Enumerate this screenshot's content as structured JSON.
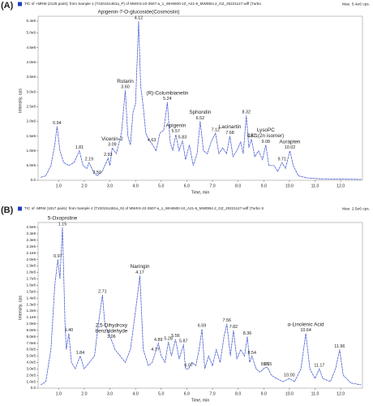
{
  "chart_data": [
    {
      "type": "line",
      "panel_label": "(A)",
      "header": "TIC of +MRM (2125 pairs): from Sample 1 (T220151481a_P) of MWKS-22-3507-a_1_WH6500-10_A21-6_MWDB4.2_GZ_20221127.wiff (Turbo",
      "max_label": "Max. 5.4e6 cps.",
      "xlabel": "Time, min",
      "ylabel": "Intensity, cps",
      "color": "#4a5fd0",
      "xlim": [
        0.2,
        12.85
      ],
      "ylim": [
        0,
        5400000
      ],
      "xticks": [
        {
          "value": 1,
          "label": "1.0"
        },
        {
          "value": 2,
          "label": "2.0"
        },
        {
          "value": 3,
          "label": "3.0"
        },
        {
          "value": 4,
          "label": "4.0"
        },
        {
          "value": 5,
          "label": "5.0"
        },
        {
          "value": 6,
          "label": "6.0"
        },
        {
          "value": 7,
          "label": "7.0"
        },
        {
          "value": 8,
          "label": "8.0"
        },
        {
          "value": 9,
          "label": "9.0"
        },
        {
          "value": 10,
          "label": "10.0"
        },
        {
          "value": 11,
          "label": "11.0"
        },
        {
          "value": 12,
          "label": "12.0"
        }
      ],
      "yticks": [
        {
          "value": 0,
          "label": "0.0"
        },
        {
          "value": 500000,
          "label": "5.0e5"
        },
        {
          "value": 1000000,
          "label": "1.0e6"
        },
        {
          "value": 1500000,
          "label": "1.5e6"
        },
        {
          "value": 2000000,
          "label": "2.0e6"
        },
        {
          "value": 2500000,
          "label": "2.5e6"
        },
        {
          "value": 3000000,
          "label": "3.0e6"
        },
        {
          "value": 3500000,
          "label": "3.5e6"
        },
        {
          "value": 4000000,
          "label": "4.0e6"
        },
        {
          "value": 4500000,
          "label": "4.5e6"
        },
        {
          "value": 5000000,
          "label": "5.0e6"
        },
        {
          "value": 5400000,
          "label": "5.4e6"
        }
      ],
      "x": [
        0.3,
        0.5,
        0.7,
        0.85,
        0.94,
        1.05,
        1.2,
        1.4,
        1.6,
        1.81,
        1.95,
        2.1,
        2.19,
        2.35,
        2.5,
        2.7,
        2.93,
        3.0,
        3.09,
        3.25,
        3.45,
        3.6,
        3.7,
        3.8,
        3.9,
        4.0,
        4.12,
        4.2,
        4.3,
        4.4,
        4.5,
        4.63,
        4.8,
        4.95,
        5.1,
        5.24,
        5.35,
        5.45,
        5.57,
        5.7,
        5.83,
        5.95,
        6.1,
        6.25,
        6.4,
        6.52,
        6.65,
        6.8,
        6.95,
        7.12,
        7.25,
        7.4,
        7.55,
        7.68,
        7.8,
        7.95,
        8.1,
        8.2,
        8.32,
        8.42,
        8.52,
        8.65,
        8.8,
        8.95,
        9.08,
        9.2,
        9.4,
        9.55,
        9.71,
        9.85,
        10.02,
        10.15,
        10.35,
        10.7,
        11.2,
        12.0,
        12.8
      ],
      "values": [
        100000.0,
        150000.0,
        500000.0,
        1200000.0,
        1830000.0,
        1000000.0,
        600000.0,
        500000.0,
        600000.0,
        1000000.0,
        500000.0,
        400000.0,
        600000.0,
        300000.0,
        150000.0,
        300000.0,
        750000.0,
        500000.0,
        1100000.0,
        900000.0,
        1600000.0,
        3050000.0,
        1500000.0,
        1200000.0,
        2300000.0,
        2600000.0,
        5400000.0,
        3200000.0,
        2500000.0,
        1600000.0,
        1400000.0,
        1250000.0,
        1000000.0,
        1600000.0,
        1700000.0,
        2650000.0,
        1300000.0,
        1000000.0,
        1550000.0,
        1000000.0,
        1350000.0,
        700000.0,
        1200000.0,
        500000.0,
        900000.0,
        2000000.0,
        1000000.0,
        900000.0,
        1300000.0,
        1600000.0,
        900000.0,
        1100000.0,
        900000.0,
        1500000.0,
        800000.0,
        1000000.0,
        1300000.0,
        900000.0,
        2200000.0,
        1100000.0,
        1400000.0,
        800000.0,
        1000000.0,
        700000.0,
        1200000.0,
        500000.0,
        500000.0,
        300000.0,
        600000.0,
        400000.0,
        1000000.0,
        500000.0,
        150000.0,
        80000.0,
        50000.0,
        40000.0,
        30000.0
      ],
      "peaks": [
        {
          "rt": 0.94,
          "intensity": 1830000.0
        },
        {
          "rt": 1.81,
          "intensity": 1000000.0
        },
        {
          "rt": 2.19,
          "intensity": 600000.0
        },
        {
          "rt": {
            "value": 2.5,
            "label": "2.50"
          },
          "intensity": 150000.0
        },
        {
          "rt": 2.93,
          "intensity": 750000.0
        },
        {
          "rt": 3.09,
          "intensity": 1100000.0,
          "name": "Vicenin-2"
        },
        {
          "rt": {
            "value": 3.6,
            "label": "3.60"
          },
          "intensity": 3050000.0,
          "name": "Rutarin"
        },
        {
          "rt": 4.12,
          "intensity": 5400000.0,
          "name": "Apigenin-7-O-glucoside(Cosmosiin)"
        },
        {
          "rt": 4.63,
          "intensity": 1250000.0
        },
        {
          "rt": 5.24,
          "intensity": 2650000.0,
          "name": "(R)-Columbianetin"
        },
        {
          "rt": 5.57,
          "intensity": 1550000.0,
          "name": "Apigenin"
        },
        {
          "rt": 5.83,
          "intensity": 1350000.0
        },
        {
          "rt": 6.52,
          "intensity": 2000000.0,
          "name": "Sphondin"
        },
        {
          "rt": 7.12,
          "intensity": 1600000.0
        },
        {
          "rt": 7.68,
          "intensity": 1500000.0,
          "name": "Lacinartin"
        },
        {
          "rt": 8.32,
          "intensity": 2200000.0
        },
        {
          "rt": 8.52,
          "intensity": 1400000.0
        },
        {
          "rt": 9.08,
          "intensity": 1200000.0,
          "name": [
            "LysoPC",
            "18:1(2n isomer)"
          ]
        },
        {
          "rt": 9.71,
          "intensity": 600000.0
        },
        {
          "rt": 10.02,
          "intensity": 1000000.0,
          "name": "Aurapten"
        }
      ]
    },
    {
      "type": "line",
      "panel_label": "(B)",
      "header": "TIC of -MRM (1817 pairs): from Sample 2 (T220151481a_N) of MWKS-22-3507-a_1_WH6500-10_A21-6_MWDB4.2_GZ_20221127.wiff (Turbo S",
      "max_label": "Max. 2.5e6 cps.",
      "xlabel": "Time, min",
      "ylabel": "Intensity, cps",
      "color": "#4a5fd0",
      "xlim": [
        0.2,
        12.85
      ],
      "ylim": [
        0,
        2500000
      ],
      "xticks": [
        {
          "value": 1,
          "label": "1.0"
        },
        {
          "value": 2,
          "label": "2.0"
        },
        {
          "value": 3,
          "label": "3.0"
        },
        {
          "value": 4,
          "label": "4.0"
        },
        {
          "value": 5,
          "label": "5.0"
        },
        {
          "value": 6,
          "label": "6.0"
        },
        {
          "value": 7,
          "label": "7.0"
        },
        {
          "value": 8,
          "label": "8.0"
        },
        {
          "value": 9,
          "label": "9.0"
        },
        {
          "value": 10,
          "label": "10.0"
        },
        {
          "value": 11,
          "label": "11.0"
        },
        {
          "value": 12,
          "label": "12.0"
        }
      ],
      "yticks": [
        {
          "value": 0,
          "label": "0.0"
        },
        {
          "value": 100000,
          "label": "1.0e5"
        },
        {
          "value": 200000,
          "label": "2.0e5"
        },
        {
          "value": 300000,
          "label": "3.0e5"
        },
        {
          "value": 400000,
          "label": "4.0e5"
        },
        {
          "value": 500000,
          "label": "5.0e5"
        },
        {
          "value": 600000,
          "label": "6.0e5"
        },
        {
          "value": 700000,
          "label": "7.0e5"
        },
        {
          "value": 800000,
          "label": "8.0e5"
        },
        {
          "value": 900000,
          "label": "9.0e5"
        },
        {
          "value": 1000000,
          "label": "1.0e6"
        },
        {
          "value": 1100000,
          "label": "1.1e6"
        },
        {
          "value": 1200000,
          "label": "1.2e6"
        },
        {
          "value": 1300000,
          "label": "1.3e6"
        },
        {
          "value": 1400000,
          "label": "1.4e6"
        },
        {
          "value": 1500000,
          "label": "1.5e6"
        },
        {
          "value": 1600000,
          "label": "1.6e6"
        },
        {
          "value": 1700000,
          "label": "1.7e6"
        },
        {
          "value": 1800000,
          "label": "1.8e6"
        },
        {
          "value": 1900000,
          "label": "1.9e6"
        },
        {
          "value": 2000000,
          "label": "2.0e6"
        },
        {
          "value": 2100000,
          "label": "2.1e6"
        },
        {
          "value": 2200000,
          "label": "2.2e6"
        },
        {
          "value": 2300000,
          "label": "2.3e6"
        },
        {
          "value": 2400000,
          "label": "2.4e6"
        },
        {
          "value": 2500000,
          "label": "2.5e6"
        }
      ],
      "x": [
        0.3,
        0.5,
        0.7,
        0.85,
        0.97,
        1.05,
        1.15,
        1.25,
        1.3,
        1.4,
        1.5,
        1.65,
        1.84,
        2.0,
        2.2,
        2.4,
        2.55,
        2.71,
        2.8,
        2.9,
        3.06,
        3.2,
        3.4,
        3.6,
        3.8,
        4.0,
        4.17,
        4.3,
        4.5,
        4.65,
        4.77,
        4.89,
        5.0,
        5.15,
        5.28,
        5.4,
        5.56,
        5.7,
        5.87,
        5.95,
        6.07,
        6.2,
        6.35,
        6.48,
        6.59,
        6.7,
        6.85,
        7.0,
        7.15,
        7.3,
        7.45,
        7.56,
        7.7,
        7.82,
        7.95,
        8.1,
        8.25,
        8.36,
        8.45,
        8.54,
        8.7,
        8.85,
        9.05,
        9.15,
        9.3,
        9.5,
        9.75,
        10.0,
        10.2,
        10.45,
        10.64,
        10.8,
        11.0,
        11.17,
        11.3,
        11.6,
        11.8,
        11.96,
        12.1,
        12.4,
        12.8
      ],
      "values": [
        50000.0,
        100000.0,
        600000.0,
        1600000.0,
        2000000.0,
        1700000.0,
        2500000.0,
        1000000.0,
        600000.0,
        850000.0,
        400000.0,
        300000.0,
        500000.0,
        300000.0,
        400000.0,
        500000.0,
        1000000.0,
        1450000.0,
        1000000.0,
        900000.0,
        750000.0,
        600000.0,
        500000.0,
        400000.0,
        600000.0,
        1200000.0,
        1750000.0,
        600000.0,
        350000.0,
        400000.0,
        550000.0,
        700000.0,
        500000.0,
        400000.0,
        720000.0,
        500000.0,
        760000.0,
        450000.0,
        680000.0,
        300000.0,
        300000.0,
        400000.0,
        350000.0,
        600000.0,
        920000.0,
        300000.0,
        500000.0,
        350000.0,
        600000.0,
        400000.0,
        800000.0,
        1000000.0,
        500000.0,
        900000.0,
        450000.0,
        600000.0,
        500000.0,
        800000.0,
        400000.0,
        500000.0,
        300000.0,
        250000.0,
        320000.0,
        320000.0,
        200000.0,
        150000.0,
        100000.0,
        150000.0,
        100000.0,
        300000.0,
        850000.0,
        300000.0,
        150000.0,
        300000.0,
        150000.0,
        100000.0,
        300000.0,
        600000.0,
        200000.0,
        80000.0,
        50000.0
      ],
      "peaks": [
        {
          "rt": 0.97,
          "intensity": 2000000.0
        },
        {
          "rt": 1.15,
          "intensity": 2500000.0,
          "name": "5-Oxoproline"
        },
        {
          "rt": {
            "value": 1.4,
            "label": "1.40"
          },
          "intensity": 850000.0
        },
        {
          "rt": 1.84,
          "intensity": 500000.0
        },
        {
          "rt": 2.71,
          "intensity": 1450000.0
        },
        {
          "rt": 3.06,
          "intensity": 750000.0,
          "name": [
            "2,5-Dihydroxy",
            "benzaldehyde"
          ]
        },
        {
          "rt": 4.17,
          "intensity": 1750000.0,
          "name": "Naringin"
        },
        {
          "rt": 4.77,
          "intensity": 550000.0
        },
        {
          "rt": 4.89,
          "intensity": 700000.0
        },
        {
          "rt": 5.28,
          "intensity": 720000.0
        },
        {
          "rt": 5.56,
          "intensity": 760000.0
        },
        {
          "rt": 5.87,
          "intensity": 680000.0
        },
        {
          "rt": 6.07,
          "intensity": 300000.0
        },
        {
          "rt": 6.59,
          "intensity": 920000.0
        },
        {
          "rt": 7.56,
          "intensity": 1000000.0
        },
        {
          "rt": 7.82,
          "intensity": 900000.0
        },
        {
          "rt": 8.36,
          "intensity": 800000.0
        },
        {
          "rt": 8.54,
          "intensity": 500000.0
        },
        {
          "rt": 9.05,
          "intensity": 320000.0
        },
        {
          "rt": 9.15,
          "intensity": 320000.0
        },
        {
          "rt": {
            "value": 10,
            "label": "10.00"
          },
          "intensity": 150000.0
        },
        {
          "rt": 10.64,
          "intensity": 850000.0,
          "name": "α-Linolenic Acid"
        },
        {
          "rt": 11.17,
          "intensity": 300000.0
        },
        {
          "rt": 11.96,
          "intensity": 600000.0
        }
      ]
    }
  ]
}
